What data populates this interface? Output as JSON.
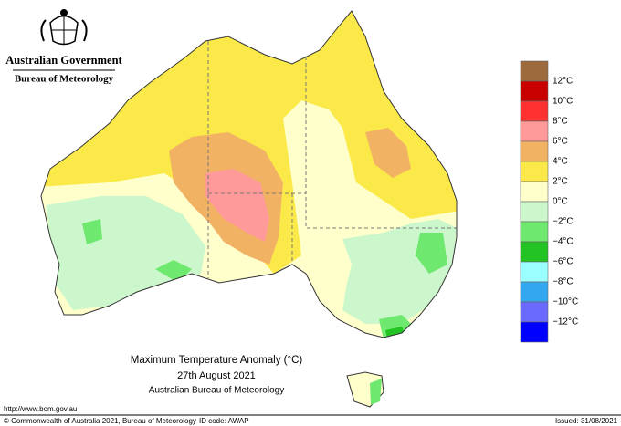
{
  "header": {
    "line1": "Australian Government",
    "line2": "Bureau of Meteorology"
  },
  "legend": {
    "colors": [
      "#9c6a3c",
      "#c80000",
      "#ff3030",
      "#ff9a9a",
      "#f2b264",
      "#fbe94a",
      "#ffffcc",
      "#ccf7cc",
      "#6ee86e",
      "#22c322",
      "#9cffff",
      "#33a8f0",
      "#6a6aff",
      "#0000ff"
    ],
    "labels": [
      "12°C",
      "10°C",
      "8°C",
      "6°C",
      "4°C",
      "2°C",
      "0°C",
      "−2°C",
      "−4°C",
      "−6°C",
      "−8°C",
      "−10°C",
      "−12°C"
    ]
  },
  "title": {
    "line1": "Maximum Temperature Anomaly (°C)",
    "line2": "27th August 2021",
    "line3": "Australian Bureau of Meteorology"
  },
  "footer": {
    "url": "http://www.bom.gov.au",
    "copyright": "© Commonwealth of Australia 2021, Bureau of Meteorology",
    "id": "ID code: AWAP",
    "issued": "Issued: 31/08/2021"
  }
}
